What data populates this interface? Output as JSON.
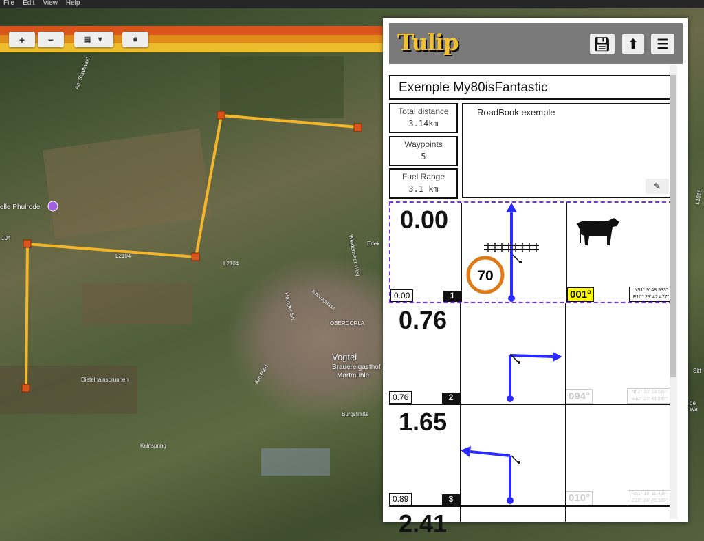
{
  "menubar": {
    "items": [
      "File",
      "Edit",
      "View",
      "Help"
    ]
  },
  "map": {
    "toolbar": {
      "zoom_in": "+",
      "zoom_out": "−",
      "layers_icon": "map-layers-icon",
      "lock_icon": "lock-icon"
    },
    "stripe_colors": [
      "#d9541a",
      "#e08e1a",
      "#ecbd2c"
    ],
    "route_color": "#f3b62b",
    "waypoint_color": "#d9541a",
    "labels": [
      "elle Phulrode",
      "L2104",
      "L2104",
      "Am Stadtwald",
      "Dietelhainsbrunnen",
      "Vogtei",
      "OBERDORLA",
      "Brauereigasthof",
      "Martmühle",
      "Burgstraße",
      "Kainspring",
      "Heroder Str.",
      "Am Ried",
      "Kreuzgasse",
      "Weidenseer Weg",
      "Edek",
      "L1016",
      "104",
      "Sitt",
      "de Wa"
    ]
  },
  "panel": {
    "logo": "Tulip",
    "buttons": {
      "save": "save-icon",
      "export": "upload-icon",
      "menu": "menu-icon"
    },
    "title": "Exemple My80isFantastic",
    "stats": [
      {
        "label": "Total distance",
        "value": "3.14km"
      },
      {
        "label": "Waypoints",
        "value": "5"
      },
      {
        "label": "Fuel Range",
        "value": "3.1 km"
      }
    ],
    "description": "RoadBook exemple",
    "waypoints": [
      {
        "total": "0.00",
        "partial": "0.00",
        "number": "1",
        "heading": "001°",
        "lat": "N51° 9' 48.933\"",
        "lon": "E10° 23' 42.477\"",
        "speed_limit": "70",
        "icons": [
          "railroad-crossing",
          "cow"
        ],
        "selected": true
      },
      {
        "total": "0.76",
        "partial": "0.76",
        "number": "2",
        "heading": "094°",
        "lat": "N51° 10' 13.539\"",
        "lon": "E10° 23' 43.095\""
      },
      {
        "total": "1.65",
        "partial": "0.89",
        "number": "3",
        "heading": "010°",
        "lat": "N51° 10' 11.408\"",
        "lon": "E10° 24' 28.980\""
      },
      {
        "total": "2.41"
      }
    ],
    "highlight_color": "#ffff00",
    "tulip_color": "#2b2bff",
    "selected_border": "#7b2cff"
  }
}
